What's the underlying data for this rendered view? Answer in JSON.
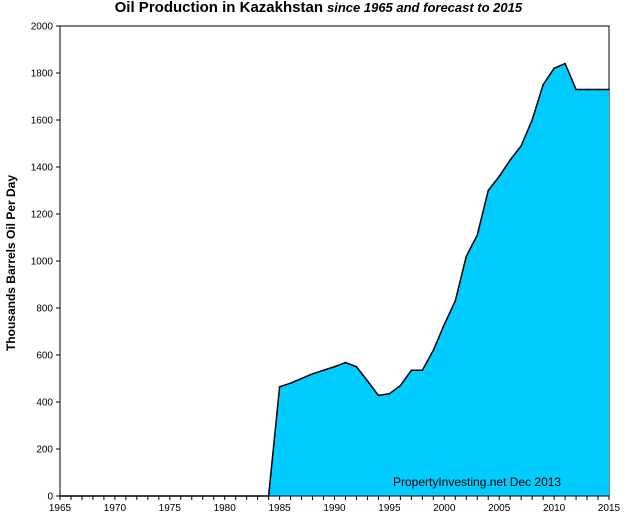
{
  "chart_data": {
    "type": "area",
    "title": "Oil Production in Kazakhstan",
    "subtitle": "since 1965 and forecast to 2015",
    "xlabel": "",
    "ylabel": "Thousands  Barrels Oil Per Day",
    "xlim": [
      1965,
      2015
    ],
    "ylim": [
      0,
      2000
    ],
    "x_ticks": [
      1965,
      1970,
      1975,
      1980,
      1985,
      1990,
      1995,
      2000,
      2005,
      2010,
      2015
    ],
    "y_ticks": [
      0,
      200,
      400,
      600,
      800,
      1000,
      1200,
      1400,
      1600,
      1800,
      2000
    ],
    "grid": false,
    "legend": "none",
    "annotation": "PropertyInvesting.net  Dec 2013",
    "fill_color": "#00ccff",
    "line_color": "#000000",
    "series": [
      {
        "x": [
          1965,
          1984,
          1985,
          1986,
          1987,
          1988,
          1989,
          1990,
          1991,
          1992,
          1993,
          1994,
          1995,
          1996,
          1997,
          1998,
          1999,
          2000,
          2001,
          2002,
          2003,
          2004,
          2005,
          2006,
          2007,
          2008,
          2009,
          2010,
          2011,
          2012,
          2013,
          2014,
          2015
        ],
        "values": [
          0,
          0,
          465,
          480,
          500,
          520,
          535,
          550,
          568,
          550,
          490,
          428,
          435,
          470,
          535,
          535,
          620,
          730,
          830,
          1020,
          1110,
          1300,
          1360,
          1430,
          1490,
          1600,
          1750,
          1820,
          1840,
          1730,
          1730,
          1730,
          1730
        ]
      }
    ]
  }
}
